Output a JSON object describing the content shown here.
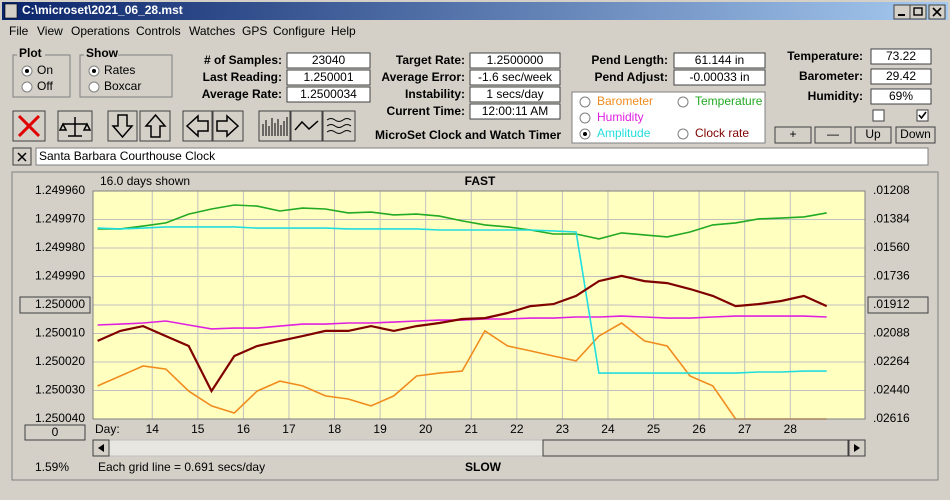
{
  "window": {
    "title": "C:\\microset\\2021_06_28.mst"
  },
  "menu": [
    "File",
    "View",
    "Operations",
    "Controls",
    "Watches",
    "GPS",
    "Configure",
    "Help"
  ],
  "plot_group": {
    "title": "Plot",
    "options": [
      "On",
      "Off"
    ],
    "selected": 0
  },
  "show_group": {
    "title": "Show",
    "options": [
      "Rates",
      "Boxcar"
    ],
    "selected": 0
  },
  "fields": [
    {
      "label": "# of Samples:",
      "value": "23040"
    },
    {
      "label": "Last Reading:",
      "value": "1.250001"
    },
    {
      "label": "Average Rate:",
      "value": "1.2500034"
    },
    {
      "label": "Target Rate:",
      "value": "1.2500000"
    },
    {
      "label": "Average Error:",
      "value": "-1.6 sec/week"
    },
    {
      "label": "Instability:",
      "value": "1 secs/day"
    },
    {
      "label": "Current Time:",
      "value": "12:00:11 AM"
    },
    {
      "label": "Pend Length:",
      "value": "61.144 in"
    },
    {
      "label": "Pend Adjust:",
      "value": "-0.00033 in"
    },
    {
      "label": "Temperature:",
      "value": "73.22"
    },
    {
      "label": "Barometer:",
      "value": "29.42"
    },
    {
      "label": "Humidity:",
      "value": "69%"
    }
  ],
  "app_title": "MicroSet Clock and Watch Timer",
  "buttons": [
    "+",
    "—",
    "Up",
    "Down"
  ],
  "checkboxes": [
    false,
    true
  ],
  "clock_name": "Santa Barbara Courthouse Clock",
  "offset_button": "0",
  "status": "1.59%",
  "chart_data": {
    "type": "line",
    "days_shown": "16.0 days shown",
    "top_label": "FAST",
    "bottom_label": "SLOW",
    "x_label": "Day:",
    "grid_note": "Each grid line = 0.691 secs/day",
    "xlim": [
      12.7,
      29.64
    ],
    "xticks": [
      14,
      15,
      16,
      17,
      18,
      19,
      20,
      21,
      22,
      23,
      24,
      25,
      26,
      27,
      28
    ],
    "ylim": [
      1.25004,
      1.24996
    ],
    "yticks": [
      {
        "value": 1.24996,
        "label": "1.249960"
      },
      {
        "value": 1.24997,
        "label": "1.249970"
      },
      {
        "value": 1.24998,
        "label": "1.249980"
      },
      {
        "value": 1.24999,
        "label": "1.249990"
      },
      {
        "value": 1.25,
        "label": "1.250000"
      },
      {
        "value": 1.25001,
        "label": "1.250010"
      },
      {
        "value": 1.25002,
        "label": "1.250020"
      },
      {
        "value": 1.25003,
        "label": "1.250030"
      },
      {
        "value": 1.25004,
        "label": "1.250040"
      }
    ],
    "y2lim": [
      0.02616,
      0.01208
    ],
    "y2ticks": [
      {
        "value": 0.01208,
        "label": ".01208"
      },
      {
        "value": 0.01384,
        "label": ".01384"
      },
      {
        "value": 0.0156,
        "label": ".01560"
      },
      {
        "value": 0.01736,
        "label": ".01736"
      },
      {
        "value": 0.01912,
        "label": ".01912"
      },
      {
        "value": 0.02088,
        "label": ".02088"
      },
      {
        "value": 0.02264,
        "label": ".02264"
      },
      {
        "value": 0.0244,
        "label": ".02440"
      },
      {
        "value": 0.02616,
        "label": ".02616"
      }
    ],
    "grid": true,
    "x": [
      12.8,
      13.3,
      13.8,
      14.3,
      14.8,
      15.3,
      15.8,
      16.3,
      16.8,
      17.3,
      17.8,
      18.3,
      18.8,
      19.3,
      19.8,
      20.3,
      20.8,
      21.3,
      21.8,
      22.3,
      22.8,
      23.3,
      23.8,
      24.3,
      24.8,
      25.3,
      25.8,
      26.3,
      26.8,
      27.3,
      27.8,
      28.3,
      28.8
    ],
    "series": [
      {
        "name": "Barometer",
        "color": "#f08c1e",
        "selected": false,
        "values": [
          1.2500284,
          1.2500249,
          1.2500214,
          1.2500225,
          1.2500302,
          1.2500354,
          1.2500379,
          1.2500302,
          1.2500267,
          1.2500284,
          1.2500319,
          1.250033,
          1.2500354,
          1.2500319,
          1.2500249,
          1.2500239,
          1.2500232,
          1.2500091,
          1.2500144,
          1.2500161,
          1.2500179,
          1.2500196,
          1.2500109,
          1.2500063,
          1.2500126,
          1.2500144,
          1.2500249,
          1.2500284,
          1.25004,
          1.25004,
          1.25004,
          1.25004,
          1.25004
        ]
      },
      {
        "name": "Temperature",
        "color": "#22aa22",
        "selected": false,
        "values": [
          1.2499733,
          1.2499733,
          1.2499723,
          1.2499712,
          1.2499681,
          1.2499663,
          1.2499649,
          1.2499653,
          1.249967,
          1.249966,
          1.2499663,
          1.2499677,
          1.2499674,
          1.2499684,
          1.2499681,
          1.2499688,
          1.2499705,
          1.2499719,
          1.2499726,
          1.2499737,
          1.2499751,
          1.2499751,
          1.2499768,
          1.2499747,
          1.2499754,
          1.2499761,
          1.2499744,
          1.2499719,
          1.2499712,
          1.2499698,
          1.2499695,
          1.2499691,
          1.2499677
        ]
      },
      {
        "name": "Humidity",
        "color": "#e020e0",
        "selected": false,
        "values": [
          1.250007,
          1.2500067,
          1.2500063,
          1.2500056,
          1.250007,
          1.2500084,
          1.2500081,
          1.2500081,
          1.2500074,
          1.2500067,
          1.2500067,
          1.2500063,
          1.2500063,
          1.250006,
          1.2500056,
          1.2500053,
          1.2500053,
          1.2500049,
          1.2500049,
          1.2500046,
          1.2500046,
          1.2500042,
          1.2500042,
          1.2500039,
          1.2500042,
          1.2500046,
          1.2500046,
          1.2500042,
          1.2500039,
          1.2500039,
          1.2500039,
          1.2500039,
          1.2500042
        ]
      },
      {
        "name": "Amplitude",
        "color": "#22dddd",
        "selected": true,
        "values": [
          1.249973,
          1.2499733,
          1.249973,
          1.2499726,
          1.2499726,
          1.2499726,
          1.2499726,
          1.249973,
          1.249973,
          1.249973,
          1.249973,
          1.2499733,
          1.2499733,
          1.2499733,
          1.2499733,
          1.2499737,
          1.2499737,
          1.2499737,
          1.2499737,
          1.2499737,
          1.249974,
          1.2499744,
          1.2500239,
          1.2500239,
          1.2500239,
          1.2500239,
          1.2500239,
          1.2500239,
          1.2500239,
          1.2500235,
          1.2500235,
          1.2500232,
          1.2500232
        ]
      },
      {
        "name": "Clock rate",
        "color": "#800000",
        "selected": false,
        "values": [
          1.2500126,
          1.2500091,
          1.2500074,
          1.2500109,
          1.2500144,
          1.2500302,
          1.2500179,
          1.2500144,
          1.2500126,
          1.2500109,
          1.2500091,
          1.2500091,
          1.2500074,
          1.2500091,
          1.2500074,
          1.2500063,
          1.2500049,
          1.2500046,
          1.2500028,
          1.2500004,
          1.2499997,
          1.2499968,
          1.2499916,
          1.2499898,
          1.2499916,
          1.2499923,
          1.2499944,
          1.2499968,
          1.2500004,
          1.2499997,
          1.2499986,
          1.2499968,
          1.2500004
        ]
      }
    ]
  }
}
